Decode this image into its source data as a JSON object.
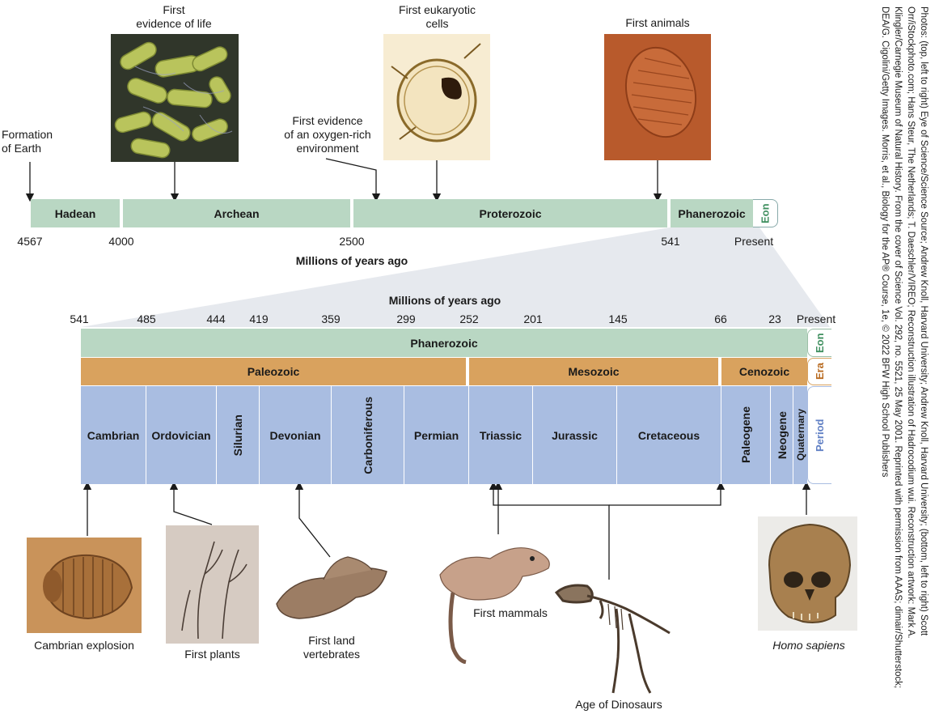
{
  "top": {
    "events": {
      "formation": "Formation\nof Earth",
      "first_life": "First\nevidence of life",
      "oxygen": "First evidence\nof an oxygen-rich\nenvironment",
      "eukaryotic": "First eukaryotic\ncells",
      "animals": "First animals"
    },
    "eons": {
      "hadean": "Hadean",
      "archean": "Archean",
      "proterozoic": "Proterozoic",
      "phanerozoic": "Phanerozoic",
      "tag": "Eon"
    },
    "ticks": [
      "4567",
      "4000",
      "2500",
      "541",
      "Present"
    ],
    "axis_label": "Millions of years ago"
  },
  "bottom": {
    "axis_label": "Millions of years ago",
    "ticks": [
      "541",
      "485",
      "444",
      "419",
      "359",
      "299",
      "252",
      "201",
      "145",
      "66",
      "23",
      "Present"
    ],
    "eon": "Phanerozoic",
    "eras": {
      "paleozoic": "Paleozoic",
      "mesozoic": "Mesozoic",
      "cenozoic": "Cenozoic"
    },
    "periods": [
      "Cambrian",
      "Ordovician",
      "Silurian",
      "Devonian",
      "Carboniferous",
      "Permian",
      "Triassic",
      "Jurassic",
      "Cretaceous",
      "Paleogene",
      "Neogene",
      "Quaternary"
    ],
    "tags": {
      "eon": "Eon",
      "era": "Era",
      "period": "Period"
    },
    "events": {
      "cambrian": "Cambrian explosion",
      "plants": "First plants",
      "vertebrates": "First land\nvertebrates",
      "mammals": "First mammals",
      "dinosaurs": "Age of Dinosaurs",
      "homo": "Homo sapiens"
    }
  },
  "colors": {
    "eon": "#b9d7c3",
    "era": "#d9a25e",
    "period": "#a9bde1",
    "eon_text": "#3f8f5f",
    "era_text": "#b86a1f",
    "period_text": "#5f7fc4"
  },
  "credits": "Photos: (top, left to right) Eye of Science/Science Source; Andrew Knoll, Harvard University; Andrew Knoll, Harvard University; (bottom, left to right) Scott Orr/iStockphoto.com; Hans Steur, The Netherlands; T. Daeschler/VIREO; Reconstruction illustration of Hadrocodium wui. Reconstruction artwork: Mark A. Klingler/Carnegie Museum of Natural History. From the cover of Science Vol. 292, no. 5521, 25 May 2001. Reprinted with permission from AAAS; dimair/Shutterstock; DEA/G. Cigolini/Getty Images. Morris, et al., Biology for the AP® Course, 1e, © 2022 BFW High School Publishers"
}
